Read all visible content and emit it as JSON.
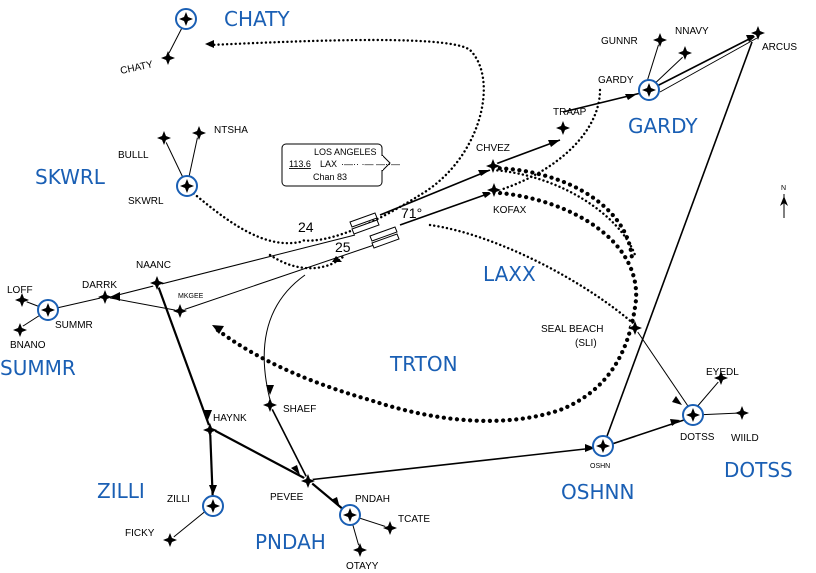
{
  "map": {
    "areas": {
      "chaty": "CHATY",
      "skwrl": "SKWRL",
      "gardy": "GARDY",
      "laxx": "LAXX",
      "summr": "SUMMR",
      "trton": "TRTON",
      "zilli": "ZILLI",
      "pndah": "PNDAH",
      "oshnn": "OSHNN",
      "dotss": "DOTSS"
    },
    "fixes": {
      "chaty": "CHATY",
      "bulll": "BULLL",
      "ntsha": "NTSHA",
      "skwrl": "SKWRL",
      "chvez": "CHVEZ",
      "kofax": "KOFAX",
      "traap": "TRAAP",
      "gunnr": "GUNNR",
      "nnavy": "NNAVY",
      "gardy": "GARDY",
      "arcus": "ARCUS",
      "loff": "LOFF",
      "bnano": "BNANO",
      "summr": "SUMMR",
      "darrk": "DARRK",
      "naanc": "NAANC",
      "mkgee": "MKGEE",
      "seal_beach": "SEAL BEACH",
      "seal_beach_id": "(SLI)",
      "haynk": "HAYNK",
      "shaef": "SHAEF",
      "pevee": "PEVEE",
      "pndah": "PNDAH",
      "tcate": "TCATE",
      "otayy": "OTAYY",
      "zilli": "ZILLI",
      "ficky": "FICKY",
      "oshn": "OSHN",
      "dotss": "DOTSS",
      "eyedl": "EYEDL",
      "wiild": "WIILD"
    },
    "navaid_box": {
      "name": "LOS ANGELES",
      "freq": "113.6",
      "ident": "LAX",
      "morse": "·—·· ·— —··—",
      "channel": "Chan 83"
    },
    "runways": {
      "rwy_24": "24",
      "rwy_25": "25",
      "heading": "71°"
    },
    "north": "N"
  }
}
